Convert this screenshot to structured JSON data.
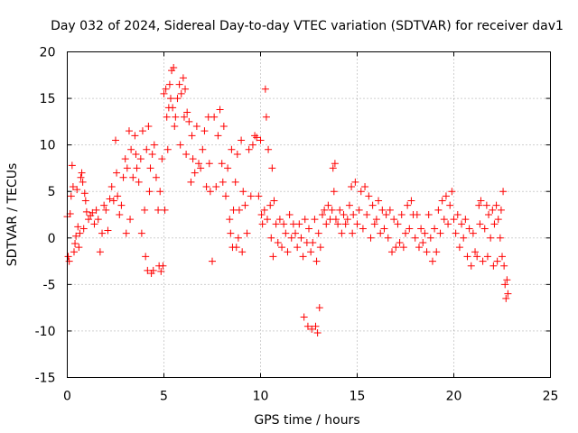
{
  "chart_data": {
    "type": "scatter",
    "title": "Day 032 of 2024, Sidereal Day-to-day VTEC variation (SDTVAR) for receiver dav1",
    "xlabel": "GPS time / hours",
    "ylabel": "SDTVAR / TECUs",
    "xlim": [
      0,
      25
    ],
    "ylim": [
      -15,
      20
    ],
    "xticks": [
      0,
      5,
      10,
      15,
      20,
      25
    ],
    "yticks": [
      -15,
      -10,
      -5,
      0,
      5,
      10,
      15,
      20
    ],
    "grid": true,
    "marker": "+",
    "color": "#ff0000",
    "series": [
      {
        "name": "dav1",
        "points": [
          [
            0.0,
            2.3
          ],
          [
            0.05,
            -2.0
          ],
          [
            0.1,
            -2.5
          ],
          [
            0.15,
            2.6
          ],
          [
            0.2,
            4.5
          ],
          [
            0.25,
            7.8
          ],
          [
            0.3,
            5.5
          ],
          [
            0.35,
            -1.5
          ],
          [
            0.4,
            -0.6
          ],
          [
            0.45,
            0.2
          ],
          [
            0.5,
            5.2
          ],
          [
            0.55,
            1.2
          ],
          [
            0.6,
            -1.0
          ],
          [
            0.65,
            0.5
          ],
          [
            0.7,
            6.5
          ],
          [
            0.75,
            7.0
          ],
          [
            0.8,
            6.0
          ],
          [
            0.85,
            1.0
          ],
          [
            0.9,
            4.8
          ],
          [
            0.95,
            4.0
          ],
          [
            1.0,
            2.8
          ],
          [
            1.1,
            2.0
          ],
          [
            1.2,
            2.4
          ],
          [
            1.3,
            2.7
          ],
          [
            1.4,
            1.5
          ],
          [
            1.5,
            3.0
          ],
          [
            1.6,
            2.0
          ],
          [
            1.7,
            -1.5
          ],
          [
            1.8,
            0.5
          ],
          [
            1.9,
            3.5
          ],
          [
            2.0,
            3.0
          ],
          [
            2.1,
            0.8
          ],
          [
            2.2,
            4.2
          ],
          [
            2.3,
            5.5
          ],
          [
            2.4,
            4.0
          ],
          [
            2.5,
            10.5
          ],
          [
            2.55,
            7.0
          ],
          [
            2.6,
            4.5
          ],
          [
            2.7,
            2.5
          ],
          [
            2.8,
            3.5
          ],
          [
            2.9,
            6.5
          ],
          [
            3.0,
            8.5
          ],
          [
            3.05,
            0.5
          ],
          [
            3.1,
            7.5
          ],
          [
            3.2,
            11.5
          ],
          [
            3.25,
            2.0
          ],
          [
            3.3,
            9.5
          ],
          [
            3.4,
            6.5
          ],
          [
            3.5,
            11.0
          ],
          [
            3.55,
            9.0
          ],
          [
            3.6,
            7.5
          ],
          [
            3.7,
            6.0
          ],
          [
            3.8,
            8.5
          ],
          [
            3.85,
            0.5
          ],
          [
            3.9,
            11.5
          ],
          [
            4.0,
            3.0
          ],
          [
            4.05,
            -2.0
          ],
          [
            4.1,
            9.5
          ],
          [
            4.15,
            -3.5
          ],
          [
            4.2,
            12.0
          ],
          [
            4.25,
            5.0
          ],
          [
            4.3,
            7.5
          ],
          [
            4.35,
            -3.8
          ],
          [
            4.4,
            9.0
          ],
          [
            4.45,
            -3.5
          ],
          [
            4.5,
            10.0
          ],
          [
            4.6,
            6.5
          ],
          [
            4.7,
            3.0
          ],
          [
            4.75,
            -3.0
          ],
          [
            4.8,
            5.0
          ],
          [
            4.85,
            -3.6
          ],
          [
            4.9,
            8.5
          ],
          [
            4.95,
            -3.0
          ],
          [
            5.0,
            15.5
          ],
          [
            5.05,
            3.0
          ],
          [
            5.1,
            16.0
          ],
          [
            5.15,
            13.0
          ],
          [
            5.2,
            9.5
          ],
          [
            5.25,
            14.0
          ],
          [
            5.3,
            16.5
          ],
          [
            5.35,
            15.0
          ],
          [
            5.4,
            18.0
          ],
          [
            5.45,
            14.0
          ],
          [
            5.5,
            18.3
          ],
          [
            5.55,
            12.0
          ],
          [
            5.6,
            13.0
          ],
          [
            5.7,
            15.0
          ],
          [
            5.8,
            16.5
          ],
          [
            5.85,
            10.0
          ],
          [
            5.9,
            15.5
          ],
          [
            6.0,
            17.2
          ],
          [
            6.05,
            13.0
          ],
          [
            6.1,
            16.0
          ],
          [
            6.15,
            9.0
          ],
          [
            6.2,
            13.5
          ],
          [
            6.3,
            12.5
          ],
          [
            6.4,
            6.0
          ],
          [
            6.45,
            11.0
          ],
          [
            6.5,
            8.5
          ],
          [
            6.6,
            7.0
          ],
          [
            6.7,
            12.0
          ],
          [
            6.8,
            8.0
          ],
          [
            6.9,
            7.5
          ],
          [
            7.0,
            9.5
          ],
          [
            7.1,
            11.5
          ],
          [
            7.2,
            5.5
          ],
          [
            7.3,
            13.0
          ],
          [
            7.35,
            8.0
          ],
          [
            7.4,
            5.0
          ],
          [
            7.5,
            -2.5
          ],
          [
            7.6,
            13.0
          ],
          [
            7.7,
            5.5
          ],
          [
            7.8,
            11.0
          ],
          [
            7.9,
            13.8
          ],
          [
            8.0,
            8.0
          ],
          [
            8.05,
            6.0
          ],
          [
            8.1,
            12.0
          ],
          [
            8.2,
            4.5
          ],
          [
            8.3,
            7.5
          ],
          [
            8.4,
            2.0
          ],
          [
            8.45,
            0.5
          ],
          [
            8.5,
            9.5
          ],
          [
            8.55,
            -1.0
          ],
          [
            8.6,
            3.0
          ],
          [
            8.7,
            6.0
          ],
          [
            8.75,
            -1.0
          ],
          [
            8.8,
            9.0
          ],
          [
            8.85,
            0.0
          ],
          [
            8.9,
            3.0
          ],
          [
            9.0,
            10.5
          ],
          [
            9.05,
            -1.5
          ],
          [
            9.1,
            5.0
          ],
          [
            9.2,
            3.5
          ],
          [
            9.3,
            0.5
          ],
          [
            9.4,
            9.5
          ],
          [
            9.5,
            4.5
          ],
          [
            9.6,
            10.0
          ],
          [
            9.7,
            11.0
          ],
          [
            9.8,
            10.8
          ],
          [
            9.9,
            4.5
          ],
          [
            10.0,
            10.5
          ],
          [
            10.05,
            2.5
          ],
          [
            10.1,
            1.5
          ],
          [
            10.2,
            3.0
          ],
          [
            10.25,
            16.0
          ],
          [
            10.3,
            13.0
          ],
          [
            10.35,
            2.0
          ],
          [
            10.4,
            9.5
          ],
          [
            10.5,
            3.5
          ],
          [
            10.55,
            0.0
          ],
          [
            10.6,
            7.5
          ],
          [
            10.65,
            -2.0
          ],
          [
            10.7,
            4.0
          ],
          [
            10.8,
            1.5
          ],
          [
            10.9,
            -0.5
          ],
          [
            11.0,
            2.0
          ],
          [
            11.1,
            -1.0
          ],
          [
            11.2,
            1.5
          ],
          [
            11.3,
            0.5
          ],
          [
            11.4,
            -1.5
          ],
          [
            11.5,
            2.5
          ],
          [
            11.6,
            0.0
          ],
          [
            11.7,
            1.5
          ],
          [
            11.8,
            0.5
          ],
          [
            11.9,
            -1.0
          ],
          [
            12.0,
            1.5
          ],
          [
            12.1,
            0.0
          ],
          [
            12.2,
            -2.0
          ],
          [
            12.25,
            -8.5
          ],
          [
            12.3,
            2.0
          ],
          [
            12.4,
            -0.5
          ],
          [
            12.45,
            -9.5
          ],
          [
            12.5,
            1.0
          ],
          [
            12.6,
            -1.5
          ],
          [
            12.65,
            -9.8
          ],
          [
            12.7,
            -0.5
          ],
          [
            12.8,
            2.0
          ],
          [
            12.85,
            -9.5
          ],
          [
            12.9,
            -2.5
          ],
          [
            12.95,
            -10.2
          ],
          [
            13.0,
            0.5
          ],
          [
            13.05,
            -7.5
          ],
          [
            13.1,
            -1.0
          ],
          [
            13.2,
            2.5
          ],
          [
            13.3,
            3.0
          ],
          [
            13.4,
            1.5
          ],
          [
            13.5,
            3.5
          ],
          [
            13.6,
            2.0
          ],
          [
            13.7,
            3.0
          ],
          [
            13.75,
            7.5
          ],
          [
            13.8,
            5.0
          ],
          [
            13.85,
            8.0
          ],
          [
            13.9,
            2.0
          ],
          [
            14.0,
            1.5
          ],
          [
            14.1,
            3.0
          ],
          [
            14.2,
            0.5
          ],
          [
            14.3,
            2.5
          ],
          [
            14.4,
            1.5
          ],
          [
            14.5,
            2.0
          ],
          [
            14.6,
            3.5
          ],
          [
            14.7,
            5.5
          ],
          [
            14.75,
            0.5
          ],
          [
            14.8,
            2.5
          ],
          [
            14.9,
            6.0
          ],
          [
            15.0,
            1.5
          ],
          [
            15.1,
            3.0
          ],
          [
            15.2,
            5.0
          ],
          [
            15.3,
            1.0
          ],
          [
            15.4,
            5.5
          ],
          [
            15.5,
            2.5
          ],
          [
            15.6,
            4.5
          ],
          [
            15.7,
            0.0
          ],
          [
            15.8,
            3.5
          ],
          [
            15.9,
            1.5
          ],
          [
            16.0,
            2.0
          ],
          [
            16.1,
            4.0
          ],
          [
            16.2,
            0.5
          ],
          [
            16.3,
            3.0
          ],
          [
            16.4,
            1.0
          ],
          [
            16.5,
            2.5
          ],
          [
            16.6,
            0.0
          ],
          [
            16.7,
            3.0
          ],
          [
            16.8,
            -1.5
          ],
          [
            16.9,
            2.0
          ],
          [
            17.0,
            -1.0
          ],
          [
            17.1,
            1.5
          ],
          [
            17.2,
            -0.5
          ],
          [
            17.3,
            2.5
          ],
          [
            17.4,
            -1.0
          ],
          [
            17.5,
            0.5
          ],
          [
            17.6,
            3.5
          ],
          [
            17.7,
            1.0
          ],
          [
            17.8,
            4.0
          ],
          [
            17.9,
            2.5
          ],
          [
            18.0,
            0.0
          ],
          [
            18.1,
            2.5
          ],
          [
            18.2,
            -1.0
          ],
          [
            18.3,
            1.0
          ],
          [
            18.4,
            -0.5
          ],
          [
            18.5,
            0.5
          ],
          [
            18.6,
            -1.5
          ],
          [
            18.7,
            2.5
          ],
          [
            18.8,
            0.0
          ],
          [
            18.9,
            -2.5
          ],
          [
            19.0,
            1.0
          ],
          [
            19.1,
            -1.5
          ],
          [
            19.2,
            3.0
          ],
          [
            19.3,
            0.5
          ],
          [
            19.4,
            4.0
          ],
          [
            19.5,
            2.0
          ],
          [
            19.6,
            4.5
          ],
          [
            19.7,
            1.5
          ],
          [
            19.8,
            3.5
          ],
          [
            19.9,
            5.0
          ],
          [
            20.0,
            2.0
          ],
          [
            20.1,
            0.5
          ],
          [
            20.2,
            2.5
          ],
          [
            20.3,
            -1.0
          ],
          [
            20.4,
            1.5
          ],
          [
            20.5,
            0.0
          ],
          [
            20.6,
            2.0
          ],
          [
            20.7,
            -2.0
          ],
          [
            20.8,
            1.0
          ],
          [
            20.9,
            -3.0
          ],
          [
            21.0,
            0.5
          ],
          [
            21.1,
            -1.5
          ],
          [
            21.2,
            -2.0
          ],
          [
            21.3,
            3.5
          ],
          [
            21.35,
            1.5
          ],
          [
            21.4,
            4.0
          ],
          [
            21.5,
            -2.5
          ],
          [
            21.6,
            1.0
          ],
          [
            21.7,
            3.5
          ],
          [
            21.75,
            -2.0
          ],
          [
            21.8,
            2.5
          ],
          [
            21.9,
            0.0
          ],
          [
            22.0,
            3.0
          ],
          [
            22.05,
            -3.0
          ],
          [
            22.1,
            1.5
          ],
          [
            22.2,
            3.5
          ],
          [
            22.25,
            -2.5
          ],
          [
            22.3,
            2.0
          ],
          [
            22.4,
            0.0
          ],
          [
            22.45,
            3.0
          ],
          [
            22.5,
            -2.0
          ],
          [
            22.55,
            5.0
          ],
          [
            22.6,
            -3.0
          ],
          [
            22.65,
            -5.0
          ],
          [
            22.7,
            -6.5
          ],
          [
            22.75,
            -4.5
          ],
          [
            22.8,
            -6.0
          ]
        ]
      }
    ]
  }
}
